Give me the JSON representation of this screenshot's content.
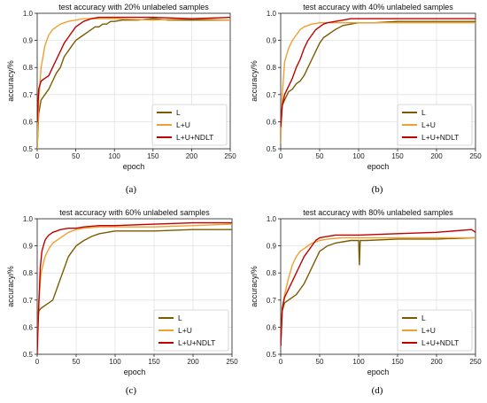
{
  "colors": {
    "L": "#7a5c00",
    "L+U": "#f0a030",
    "L+U+NDLT": "#c00000"
  },
  "chart_data": [
    {
      "type": "line",
      "caption": "(a)",
      "title": "test accuracy with 20% unlabeled samples",
      "xlabel": "epoch",
      "ylabel": "accuracy/%",
      "xlim": [
        0,
        250
      ],
      "ylim": [
        0.5,
        1.0
      ],
      "xticks": [
        "0",
        "50",
        "100",
        "150",
        "200",
        "250"
      ],
      "yticks": [
        "0.5",
        "0.6",
        "0.7",
        "0.8",
        "0.9",
        "1.0"
      ],
      "grid": true,
      "legend": "bottom-right",
      "series": [
        {
          "name": "L",
          "x": [
            0,
            2,
            5,
            10,
            15,
            20,
            25,
            30,
            35,
            40,
            45,
            50,
            55,
            60,
            65,
            70,
            75,
            80,
            85,
            90,
            95,
            100,
            110,
            120,
            130,
            150,
            170,
            200,
            230,
            250
          ],
          "y": [
            0.5,
            0.63,
            0.68,
            0.7,
            0.72,
            0.75,
            0.78,
            0.8,
            0.84,
            0.86,
            0.88,
            0.9,
            0.91,
            0.92,
            0.93,
            0.94,
            0.95,
            0.95,
            0.96,
            0.96,
            0.97,
            0.97,
            0.975,
            0.975,
            0.975,
            0.98,
            0.975,
            0.975,
            0.975,
            0.975
          ]
        },
        {
          "name": "L+U",
          "x": [
            0,
            2,
            5,
            10,
            15,
            20,
            25,
            30,
            40,
            50,
            60,
            80,
            100,
            150,
            200,
            250
          ],
          "y": [
            0.5,
            0.68,
            0.8,
            0.88,
            0.92,
            0.94,
            0.95,
            0.96,
            0.97,
            0.975,
            0.98,
            0.98,
            0.98,
            0.975,
            0.98,
            0.975
          ]
        },
        {
          "name": "L+U+NDLT",
          "x": [
            0,
            2,
            5,
            10,
            15,
            20,
            25,
            30,
            35,
            40,
            45,
            50,
            55,
            60,
            65,
            70,
            80,
            90,
            100,
            150,
            200,
            250
          ],
          "y": [
            0.6,
            0.72,
            0.75,
            0.76,
            0.77,
            0.8,
            0.83,
            0.86,
            0.89,
            0.91,
            0.93,
            0.95,
            0.96,
            0.97,
            0.975,
            0.98,
            0.985,
            0.985,
            0.985,
            0.985,
            0.98,
            0.985
          ]
        }
      ]
    },
    {
      "type": "line",
      "caption": "(b)",
      "title": "test accuracy with 40% unlabeled samples",
      "xlabel": "epoch",
      "ylabel": "accuracy/%",
      "xlim": [
        0,
        250
      ],
      "ylim": [
        0.5,
        1.0
      ],
      "xticks": [
        "0",
        "50",
        "100",
        "150",
        "200",
        "250"
      ],
      "yticks": [
        "0.5",
        "0.6",
        "0.7",
        "0.8",
        "0.9",
        "1.0"
      ],
      "grid": true,
      "legend": "bottom-right",
      "series": [
        {
          "name": "L",
          "x": [
            0,
            2,
            5,
            10,
            15,
            20,
            25,
            30,
            35,
            40,
            45,
            50,
            55,
            60,
            65,
            70,
            80,
            90,
            100,
            120,
            150,
            200,
            250
          ],
          "y": [
            0.58,
            0.66,
            0.68,
            0.71,
            0.72,
            0.74,
            0.75,
            0.77,
            0.8,
            0.83,
            0.86,
            0.89,
            0.91,
            0.92,
            0.93,
            0.94,
            0.955,
            0.96,
            0.965,
            0.965,
            0.97,
            0.97,
            0.97
          ]
        },
        {
          "name": "L+U",
          "x": [
            0,
            2,
            5,
            10,
            15,
            20,
            25,
            30,
            40,
            50,
            60,
            80,
            100,
            150,
            200,
            250
          ],
          "y": [
            0.52,
            0.7,
            0.82,
            0.87,
            0.9,
            0.92,
            0.94,
            0.95,
            0.96,
            0.965,
            0.965,
            0.965,
            0.965,
            0.965,
            0.965,
            0.965
          ]
        },
        {
          "name": "L+U+NDLT",
          "x": [
            0,
            2,
            5,
            10,
            15,
            20,
            25,
            30,
            35,
            40,
            45,
            50,
            55,
            60,
            70,
            80,
            90,
            100,
            150,
            200,
            250
          ],
          "y": [
            0.58,
            0.66,
            0.7,
            0.73,
            0.76,
            0.8,
            0.83,
            0.87,
            0.9,
            0.92,
            0.94,
            0.95,
            0.96,
            0.965,
            0.97,
            0.975,
            0.98,
            0.98,
            0.98,
            0.98,
            0.98
          ]
        }
      ]
    },
    {
      "type": "line",
      "caption": "(c)",
      "title": "test accuracy with 60% unlabeled samples",
      "xlabel": "epoch",
      "ylabel": "accuracy/%",
      "xlim": [
        0,
        250
      ],
      "ylim": [
        0.5,
        1.0
      ],
      "xticks": [
        "0",
        "50",
        "100",
        "150",
        "200",
        "250"
      ],
      "yticks": [
        "0.5",
        "0.6",
        "0.7",
        "0.8",
        "0.9",
        "1.0"
      ],
      "grid": true,
      "legend": "bottom-right",
      "series": [
        {
          "name": "L",
          "x": [
            0,
            2,
            5,
            10,
            15,
            20,
            25,
            30,
            35,
            40,
            45,
            50,
            55,
            60,
            70,
            80,
            90,
            100,
            120,
            150,
            200,
            250
          ],
          "y": [
            0.6,
            0.66,
            0.67,
            0.68,
            0.69,
            0.7,
            0.74,
            0.78,
            0.82,
            0.86,
            0.88,
            0.9,
            0.91,
            0.92,
            0.935,
            0.945,
            0.95,
            0.955,
            0.955,
            0.955,
            0.96,
            0.96
          ]
        },
        {
          "name": "L+U",
          "x": [
            0,
            2,
            5,
            10,
            15,
            20,
            25,
            30,
            40,
            50,
            60,
            80,
            100,
            150,
            200,
            250
          ],
          "y": [
            0.55,
            0.7,
            0.8,
            0.86,
            0.89,
            0.91,
            0.92,
            0.93,
            0.95,
            0.96,
            0.965,
            0.97,
            0.97,
            0.97,
            0.975,
            0.98
          ]
        },
        {
          "name": "L+U+NDLT",
          "x": [
            0,
            2,
            4,
            6,
            8,
            10,
            12,
            15,
            20,
            25,
            30,
            40,
            50,
            60,
            80,
            100,
            150,
            200,
            250
          ],
          "y": [
            0.5,
            0.68,
            0.82,
            0.88,
            0.9,
            0.92,
            0.93,
            0.94,
            0.95,
            0.955,
            0.96,
            0.965,
            0.965,
            0.97,
            0.975,
            0.975,
            0.98,
            0.985,
            0.985
          ]
        }
      ]
    },
    {
      "type": "line",
      "caption": "(d)",
      "title": "test accuracy with 80% unlabeled samples",
      "xlabel": "epoch",
      "ylabel": "accuracy/%",
      "xlim": [
        0,
        250
      ],
      "ylim": [
        0.5,
        1.0
      ],
      "xticks": [
        "0",
        "50",
        "100",
        "150",
        "200",
        "250"
      ],
      "yticks": [
        "0.5",
        "0.6",
        "0.7",
        "0.8",
        "0.9",
        "1.0"
      ],
      "grid": true,
      "legend": "bottom-right",
      "series": [
        {
          "name": "L",
          "x": [
            0,
            2,
            5,
            10,
            15,
            20,
            25,
            30,
            35,
            40,
            45,
            50,
            55,
            60,
            70,
            80,
            90,
            95,
            100,
            101,
            102,
            110,
            150,
            200,
            250
          ],
          "y": [
            0.53,
            0.66,
            0.69,
            0.7,
            0.71,
            0.72,
            0.74,
            0.76,
            0.79,
            0.82,
            0.85,
            0.88,
            0.89,
            0.9,
            0.91,
            0.915,
            0.92,
            0.92,
            0.92,
            0.83,
            0.92,
            0.92,
            0.925,
            0.925,
            0.93
          ]
        },
        {
          "name": "L+U",
          "x": [
            0,
            2,
            5,
            10,
            15,
            20,
            25,
            30,
            40,
            50,
            60,
            80,
            100,
            150,
            200,
            250
          ],
          "y": [
            0.55,
            0.67,
            0.72,
            0.78,
            0.83,
            0.86,
            0.88,
            0.89,
            0.91,
            0.92,
            0.925,
            0.93,
            0.93,
            0.93,
            0.93,
            0.93
          ]
        },
        {
          "name": "L+U+NDLT",
          "x": [
            0,
            2,
            5,
            10,
            15,
            20,
            25,
            30,
            35,
            40,
            45,
            50,
            60,
            70,
            80,
            90,
            100,
            150,
            200,
            245,
            250
          ],
          "y": [
            0.53,
            0.67,
            0.71,
            0.74,
            0.77,
            0.8,
            0.83,
            0.86,
            0.88,
            0.9,
            0.92,
            0.93,
            0.935,
            0.94,
            0.94,
            0.94,
            0.94,
            0.945,
            0.95,
            0.96,
            0.95
          ]
        }
      ]
    }
  ]
}
